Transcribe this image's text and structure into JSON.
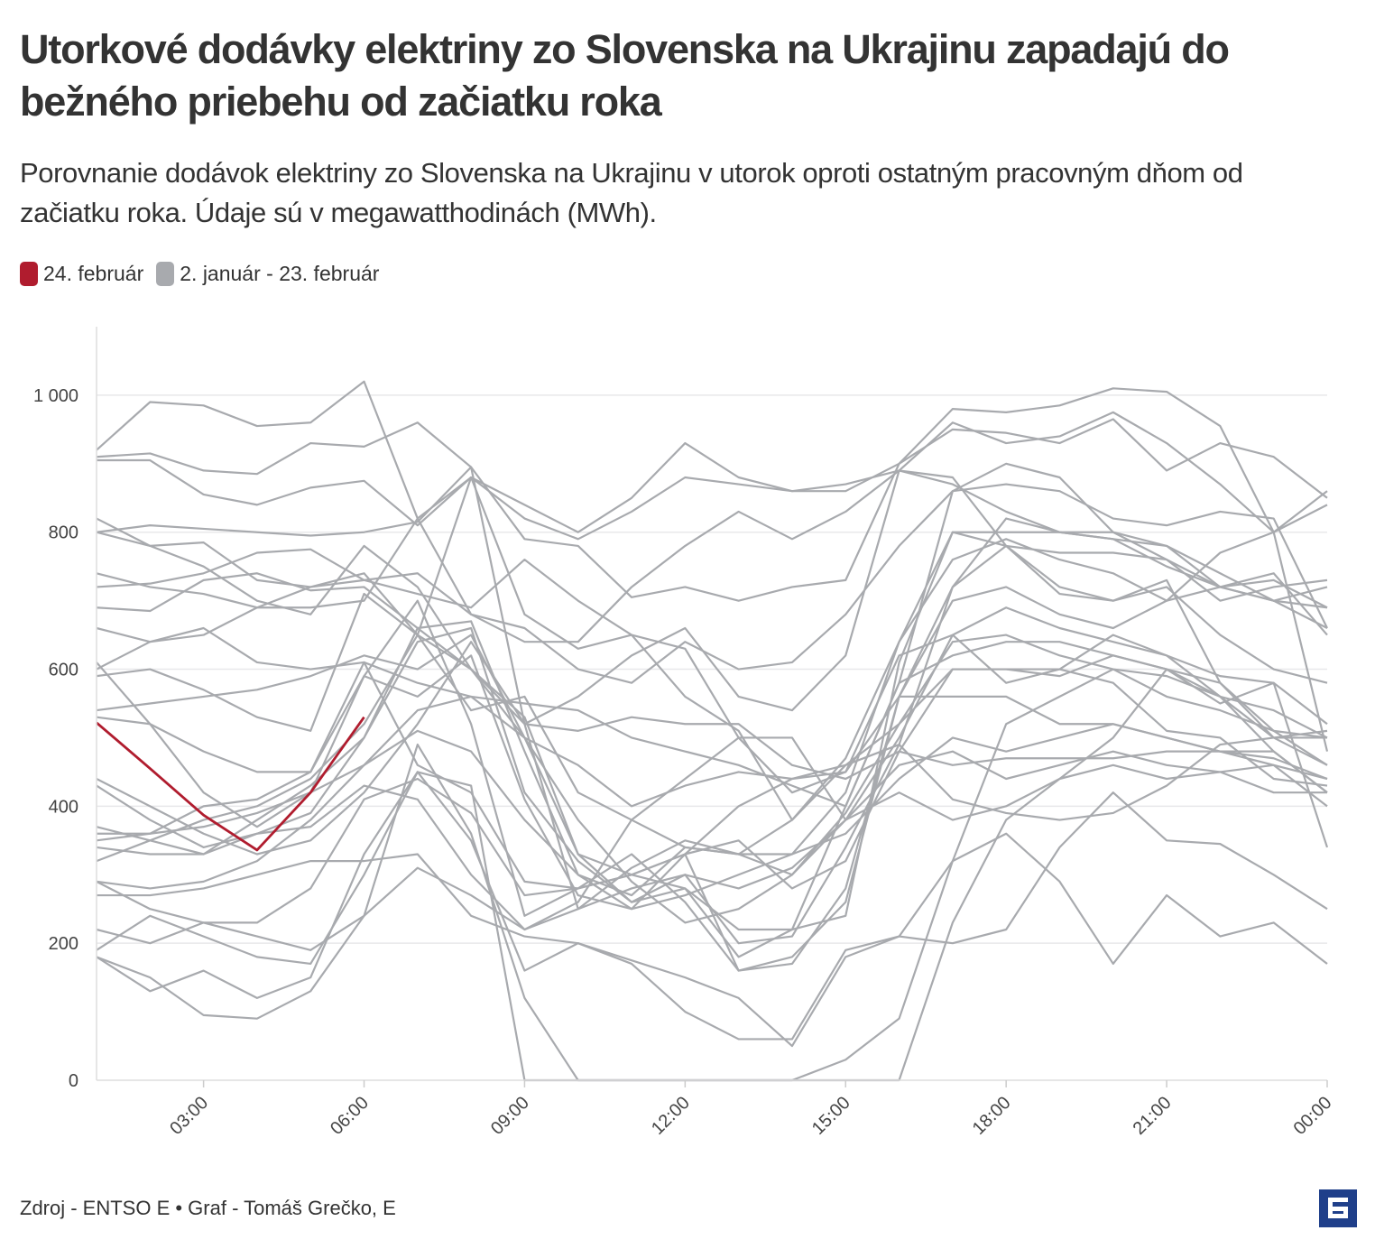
{
  "title": "Utorkové dodávky elektriny zo Slovenska na Ukrajinu zapadajú do bežného priebehu od začiatku roka",
  "subtitle": "Porovnanie dodávok elektriny zo Slovenska na Ukrajinu v utorok oproti ostatným pracovným dňom od začiatku roka. Údaje sú v megawatthodinách (MWh).",
  "legend": [
    {
      "label": "24. február",
      "color": "#b01c2e"
    },
    {
      "label": "2. január - 23. február",
      "color": "#a8aaae"
    }
  ],
  "footer": "Zdroj - ENTSO E • Graf - Tomáš Grečko, E",
  "logo": {
    "icon": "e-logo-icon",
    "color": "#1f3f8a"
  },
  "chart_data": {
    "type": "line",
    "x_hours": [
      1,
      2,
      3,
      4,
      5,
      6,
      7,
      8,
      9,
      10,
      11,
      12,
      13,
      14,
      15,
      16,
      17,
      18,
      19,
      20,
      21,
      22,
      23,
      24
    ],
    "xticks": [
      {
        "hour": 3,
        "label": "03:00"
      },
      {
        "hour": 6,
        "label": "06:00"
      },
      {
        "hour": 9,
        "label": "09:00"
      },
      {
        "hour": 12,
        "label": "12:00"
      },
      {
        "hour": 15,
        "label": "15:00"
      },
      {
        "hour": 18,
        "label": "18:00"
      },
      {
        "hour": 21,
        "label": "21:00"
      },
      {
        "hour": 24,
        "label": "00:00"
      }
    ],
    "yticks": [
      {
        "value": 0,
        "label": "0"
      },
      {
        "value": 200,
        "label": "200"
      },
      {
        "value": 400,
        "label": "400"
      },
      {
        "value": 600,
        "label": "600"
      },
      {
        "value": 800,
        "label": "800"
      },
      {
        "value": 1000,
        "label": "1 000"
      }
    ],
    "ylim": [
      0,
      1100
    ],
    "xlim": [
      1,
      24
    ],
    "grid": true,
    "highlight": {
      "name": "24. február",
      "color": "#b01c2e",
      "values": [
        522,
        455,
        387,
        336,
        420,
        530
      ]
    },
    "background_series_color": "#a8aaae",
    "background_series": [
      [
        920,
        990,
        985,
        955,
        960,
        1020,
        820,
        880,
        840,
        800,
        850,
        930,
        880,
        860,
        860,
        900,
        980,
        975,
        985,
        1010,
        1005,
        955,
        800,
        860
      ],
      [
        905,
        905,
        855,
        840,
        865,
        875,
        810,
        880,
        820,
        790,
        830,
        880,
        870,
        860,
        870,
        890,
        960,
        930,
        940,
        975,
        930,
        870,
        800,
        840
      ],
      [
        910,
        915,
        890,
        885,
        930,
        925,
        960,
        895,
        790,
        780,
        705,
        720,
        700,
        720,
        730,
        900,
        950,
        945,
        930,
        965,
        890,
        930,
        910,
        850
      ],
      [
        820,
        780,
        785,
        730,
        720,
        730,
        740,
        680,
        660,
        600,
        580,
        640,
        600,
        610,
        680,
        780,
        860,
        900,
        880,
        800,
        760,
        720,
        700,
        660
      ],
      [
        800,
        810,
        805,
        800,
        795,
        800,
        815,
        895,
        520,
        560,
        620,
        660,
        560,
        540,
        620,
        890,
        880,
        780,
        770,
        770,
        760,
        700,
        720,
        730
      ],
      [
        740,
        720,
        710,
        690,
        690,
        700,
        820,
        680,
        640,
        640,
        720,
        780,
        830,
        790,
        830,
        890,
        870,
        830,
        800,
        790,
        750,
        720,
        730,
        690
      ],
      [
        720,
        725,
        740,
        770,
        775,
        730,
        710,
        690,
        760,
        700,
        650,
        630,
        500,
        420,
        450,
        620,
        650,
        580,
        600,
        650,
        620,
        590,
        580,
        520
      ],
      [
        690,
        685,
        730,
        740,
        715,
        720,
        660,
        600,
        530,
        330,
        260,
        280,
        180,
        220,
        240,
        610,
        800,
        780,
        720,
        700,
        720,
        650,
        600,
        580
      ],
      [
        660,
        640,
        660,
        610,
        600,
        610,
        580,
        560,
        550,
        540,
        500,
        480,
        460,
        430,
        400,
        580,
        620,
        640,
        640,
        620,
        600,
        560,
        540,
        500
      ],
      [
        600,
        640,
        650,
        690,
        720,
        740,
        650,
        880,
        680,
        630,
        650,
        560,
        510,
        380,
        470,
        640,
        760,
        790,
        760,
        740,
        700,
        770,
        800,
        480
      ],
      [
        590,
        600,
        570,
        530,
        510,
        710,
        650,
        540,
        560,
        420,
        380,
        340,
        330,
        300,
        390,
        520,
        640,
        650,
        620,
        600,
        590,
        560,
        480,
        420
      ],
      [
        540,
        550,
        560,
        570,
        590,
        620,
        600,
        650,
        500,
        460,
        400,
        430,
        450,
        440,
        450,
        560,
        560,
        560,
        520,
        520,
        500,
        480,
        470,
        440
      ],
      [
        530,
        520,
        480,
        450,
        450,
        590,
        560,
        620,
        410,
        270,
        250,
        330,
        350,
        280,
        320,
        480,
        600,
        600,
        590,
        620,
        600,
        580,
        500,
        460
      ],
      [
        440,
        400,
        360,
        330,
        350,
        420,
        520,
        640,
        520,
        250,
        280,
        300,
        200,
        210,
        340,
        490,
        720,
        820,
        800,
        800,
        780,
        740,
        700,
        690
      ],
      [
        430,
        380,
        340,
        360,
        390,
        500,
        660,
        670,
        480,
        300,
        270,
        340,
        330,
        380,
        460,
        520,
        600,
        600,
        600,
        580,
        510,
        500,
        440,
        430
      ],
      [
        370,
        350,
        330,
        380,
        430,
        500,
        640,
        660,
        420,
        320,
        260,
        300,
        280,
        310,
        380,
        460,
        480,
        440,
        460,
        480,
        460,
        450,
        420,
        420
      ],
      [
        360,
        360,
        370,
        390,
        420,
        460,
        510,
        480,
        380,
        300,
        250,
        270,
        300,
        330,
        360,
        440,
        500,
        480,
        500,
        520,
        500,
        480,
        460,
        440
      ],
      [
        350,
        360,
        400,
        410,
        450,
        610,
        460,
        420,
        290,
        280,
        300,
        330,
        160,
        170,
        280,
        560,
        720,
        780,
        710,
        700,
        730,
        580,
        510,
        500
      ],
      [
        340,
        330,
        330,
        360,
        370,
        430,
        410,
        300,
        220,
        250,
        310,
        350,
        330,
        330,
        420,
        640,
        800,
        800,
        800,
        790,
        780,
        720,
        700,
        720
      ],
      [
        290,
        280,
        290,
        320,
        380,
        460,
        540,
        560,
        500,
        380,
        290,
        230,
        250,
        300,
        380,
        500,
        650,
        690,
        660,
        640,
        620,
        560,
        500,
        500
      ],
      [
        290,
        250,
        230,
        230,
        280,
        410,
        440,
        390,
        270,
        280,
        300,
        330,
        400,
        440,
        460,
        490,
        410,
        390,
        380,
        390,
        430,
        490,
        500,
        510
      ],
      [
        270,
        270,
        280,
        300,
        320,
        320,
        330,
        240,
        210,
        200,
        175,
        150,
        120,
        50,
        180,
        210,
        200,
        220,
        340,
        420,
        350,
        345,
        300,
        250
      ],
      [
        220,
        200,
        230,
        210,
        190,
        240,
        490,
        360,
        120,
        0,
        0,
        0,
        0,
        0,
        30,
        90,
        320,
        520,
        560,
        600,
        560,
        540,
        510,
        460
      ],
      [
        190,
        240,
        210,
        180,
        170,
        300,
        450,
        430,
        0,
        0,
        0,
        0,
        0,
        0,
        0,
        0,
        230,
        380,
        440,
        500,
        600,
        550,
        580,
        340
      ],
      [
        180,
        130,
        160,
        120,
        150,
        330,
        450,
        350,
        160,
        200,
        170,
        100,
        60,
        60,
        190,
        210,
        320,
        360,
        290,
        170,
        270,
        210,
        230,
        170
      ],
      [
        180,
        150,
        95,
        90,
        130,
        240,
        310,
        270,
        220,
        260,
        380,
        440,
        500,
        500,
        380,
        420,
        380,
        400,
        440,
        460,
        440,
        450,
        460,
        400
      ],
      [
        320,
        350,
        380,
        400,
        440,
        520,
        650,
        600,
        520,
        510,
        530,
        520,
        520,
        460,
        440,
        480,
        460,
        470,
        470,
        470,
        480,
        480,
        480,
        420
      ],
      [
        610,
        520,
        420,
        370,
        420,
        590,
        700,
        520,
        240,
        280,
        330,
        260,
        160,
        180,
        260,
        560,
        700,
        720,
        680,
        660,
        700,
        720,
        740,
        650
      ],
      [
        800,
        780,
        750,
        700,
        680,
        780,
        720,
        600,
        500,
        330,
        300,
        280,
        220,
        220,
        400,
        580,
        860,
        870,
        860,
        820,
        810,
        830,
        820,
        660
      ]
    ]
  }
}
